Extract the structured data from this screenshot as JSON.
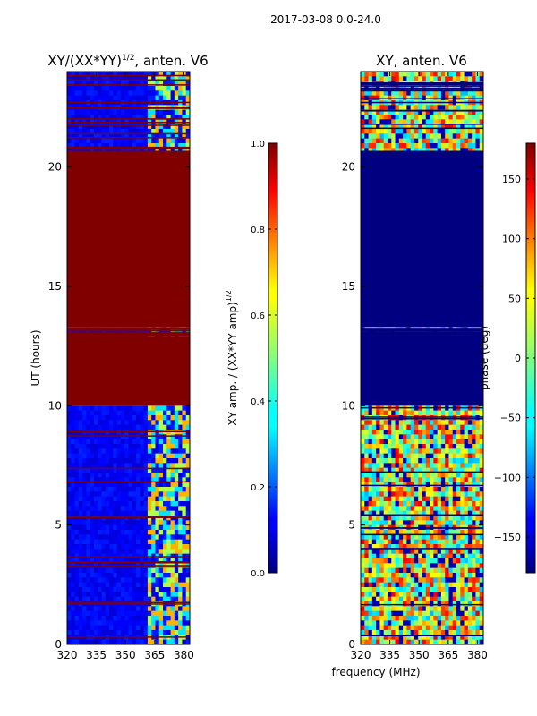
{
  "suptitle": "2017-03-08 0.0-24.0",
  "xlabel": "frequency (MHz)",
  "chart_data": [
    {
      "type": "heatmap",
      "title_main": "XY/(XX*YY)",
      "title_exp": "1/2",
      "title_tail": ", anten. V6",
      "xlabel": "frequency (MHz)",
      "ylabel": "UT (hours)",
      "xlim": [
        320,
        383
      ],
      "ylim": [
        0,
        24
      ],
      "xticks": [
        320,
        335,
        350,
        365,
        380
      ],
      "yticks": [
        0,
        5,
        10,
        15,
        20
      ],
      "colorbar": {
        "label_main": "XY amp. / (XX*YY amp)",
        "label_exp": "1/2",
        "range": [
          0.0,
          1.0
        ],
        "ticks": [
          "0.0",
          "0.2",
          "0.4",
          "0.6",
          "0.8",
          "1.0"
        ],
        "tick_values": [
          0.0,
          0.2,
          0.4,
          0.6,
          0.8,
          1.0
        ]
      },
      "regions": [
        {
          "ut_start": 0,
          "ut_end": 10,
          "low_freq_value": 0.1,
          "high_freq_value": 0.6,
          "freq_split": 361
        },
        {
          "ut_start": 10,
          "ut_end": 12.9,
          "value": 1.0
        },
        {
          "ut_start": 12.9,
          "ut_end": 13.3,
          "low_freq_value": 0.1,
          "high_freq_value": 0.6,
          "freq_split": 361
        },
        {
          "ut_start": 13.3,
          "ut_end": 20.7,
          "value": 1.0
        },
        {
          "ut_start": 20.7,
          "ut_end": 24,
          "low_freq_value": 0.1,
          "high_freq_value": 0.6,
          "freq_split": 361
        }
      ]
    },
    {
      "type": "heatmap",
      "title_main": "XY, anten. V6",
      "xlabel": "frequency (MHz)",
      "ylabel": "",
      "xlim": [
        320,
        383
      ],
      "ylim": [
        0,
        24
      ],
      "xticks": [
        320,
        335,
        350,
        365,
        380
      ],
      "yticks": [
        0,
        5,
        10,
        15,
        20
      ],
      "colorbar": {
        "label_main": "phase (deg)",
        "range": [
          -180,
          180
        ],
        "ticks": [
          "−150",
          "−100",
          "−50",
          "0",
          "50",
          "100",
          "150"
        ],
        "tick_values": [
          -150,
          -100,
          -50,
          0,
          50,
          100,
          150
        ]
      },
      "regions": [
        {
          "ut_start": 0,
          "ut_end": 10,
          "value": "mixed phase"
        },
        {
          "ut_start": 10,
          "ut_end": 12.9,
          "value": -180
        },
        {
          "ut_start": 12.9,
          "ut_end": 13.3,
          "value": "mixed phase"
        },
        {
          "ut_start": 13.3,
          "ut_end": 20.7,
          "value": -180
        },
        {
          "ut_start": 20.7,
          "ut_end": 24,
          "value": "mixed phase"
        }
      ]
    }
  ]
}
